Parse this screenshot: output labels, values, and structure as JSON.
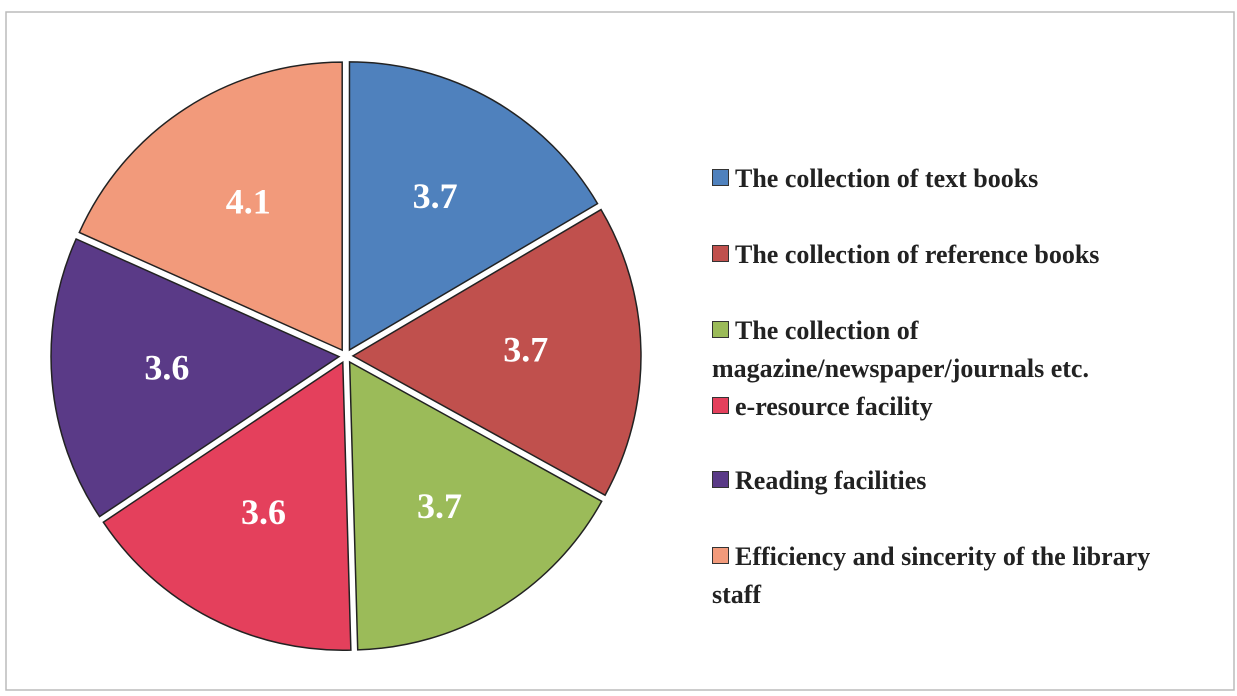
{
  "chart_data": {
    "type": "pie",
    "categories": [
      "The collection of text books",
      "The collection of reference books",
      "The collection of magazine/newspaper/journals etc.",
      "e-resource facility",
      "Reading facilities",
      "Efficiency and sincerity of the library staff"
    ],
    "values": [
      3.7,
      3.7,
      3.7,
      3.6,
      3.6,
      4.1
    ],
    "colors": [
      "#4f81bd",
      "#c0504d",
      "#9bbb59",
      "#e4405c",
      "#5a3a87",
      "#f29a7b"
    ],
    "legend": "right"
  }
}
